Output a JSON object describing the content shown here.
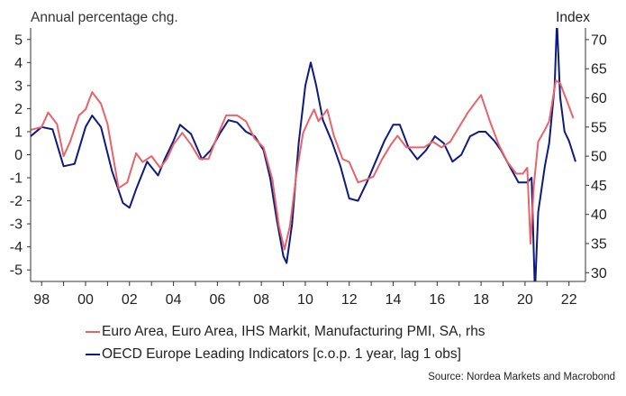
{
  "chart_data": {
    "type": "line",
    "left_axis_title": "Annual percentage chg.",
    "right_axis_title": "Index",
    "x_ticks": [
      "98",
      "00",
      "02",
      "04",
      "06",
      "08",
      "10",
      "12",
      "14",
      "16",
      "18",
      "20",
      "22"
    ],
    "x_range": [
      1997.5,
      2022.75
    ],
    "ylim_left": [
      -5.5,
      5.5
    ],
    "yticks_left": [
      "5",
      "4",
      "3",
      "2",
      "1",
      "0",
      "-1",
      "-2",
      "-3",
      "-4",
      "-5"
    ],
    "ylim_right": [
      28.5,
      72
    ],
    "yticks_right": [
      "70",
      "65",
      "60",
      "55",
      "50",
      "45",
      "40",
      "35",
      "30"
    ],
    "grid": false,
    "legend_position": "bottom",
    "series": [
      {
        "name": "Euro Area, Euro Area, IHS Markit, Manufacturing PMI, SA, rhs",
        "axis": "right",
        "color": "#e8636a",
        "x": [
          1997.5,
          1998.0,
          1998.3,
          1998.7,
          1999.0,
          1999.3,
          1999.7,
          2000.0,
          2000.3,
          2000.7,
          2001.0,
          2001.5,
          2001.9,
          2002.3,
          2002.6,
          2003.0,
          2003.4,
          2003.7,
          2004.0,
          2004.4,
          2004.8,
          2005.2,
          2005.6,
          2006.0,
          2006.4,
          2006.9,
          2007.3,
          2007.7,
          2008.1,
          2008.5,
          2008.8,
          2009.05,
          2009.3,
          2009.6,
          2009.9,
          2010.2,
          2010.4,
          2010.6,
          2010.8,
          2011.0,
          2011.3,
          2011.7,
          2012.0,
          2012.4,
          2012.8,
          2013.1,
          2013.5,
          2013.9,
          2014.2,
          2014.6,
          2015.0,
          2015.4,
          2015.8,
          2016.2,
          2016.6,
          2017.0,
          2017.4,
          2017.8,
          2018.0,
          2018.4,
          2018.8,
          2019.2,
          2019.6,
          2019.9,
          2020.1,
          2020.25,
          2020.4,
          2020.6,
          2020.9,
          2021.1,
          2021.4,
          2021.6,
          2021.9,
          2022.2
        ],
        "values": [
          54.5,
          55.0,
          57.5,
          55.5,
          50.0,
          52.5,
          57.0,
          58.0,
          61.0,
          59.0,
          55.5,
          44.5,
          45.5,
          50.5,
          49.0,
          50.0,
          48.0,
          49.5,
          52.0,
          54.0,
          52.0,
          49.5,
          49.5,
          53.5,
          57.0,
          57.0,
          56.0,
          53.0,
          51.5,
          46.0,
          38.0,
          34.0,
          38.0,
          47.0,
          54.0,
          56.5,
          58.0,
          56.0,
          57.0,
          58.0,
          53.5,
          49.5,
          49.0,
          45.5,
          46.0,
          46.5,
          49.5,
          52.0,
          53.5,
          51.5,
          51.5,
          51.5,
          52.5,
          51.5,
          52.5,
          55.0,
          57.5,
          59.5,
          60.5,
          56.0,
          52.0,
          49.0,
          47.0,
          47.0,
          48.0,
          35.0,
          45.0,
          52.5,
          54.5,
          56.0,
          63.0,
          62.5,
          59.5,
          56.5
        ]
      },
      {
        "name": "OECD Europe Leading Indicators [c.o.p. 1 year, lag 1 obs]",
        "axis": "left",
        "color": "#0d1b7e",
        "x": [
          1997.5,
          1998.0,
          1998.5,
          1999.0,
          1999.5,
          2000.0,
          2000.3,
          2000.7,
          2001.2,
          2001.7,
          2002.0,
          2002.3,
          2002.8,
          2003.3,
          2003.6,
          2004.0,
          2004.3,
          2004.8,
          2005.3,
          2005.7,
          2006.1,
          2006.5,
          2006.9,
          2007.3,
          2007.7,
          2008.1,
          2008.4,
          2008.7,
          2009.0,
          2009.15,
          2009.4,
          2009.7,
          2010.0,
          2010.25,
          2010.5,
          2010.8,
          2011.2,
          2011.6,
          2012.0,
          2012.4,
          2012.8,
          2013.2,
          2013.6,
          2014.0,
          2014.3,
          2014.7,
          2015.1,
          2015.5,
          2015.9,
          2016.3,
          2016.7,
          2017.1,
          2017.5,
          2017.9,
          2018.2,
          2018.6,
          2018.9,
          2019.3,
          2019.7,
          2020.1,
          2020.3,
          2020.45,
          2020.6,
          2020.9,
          2021.1,
          2021.35,
          2021.45,
          2021.6,
          2021.8,
          2022.0,
          2022.3
        ],
        "values": [
          0.8,
          1.2,
          1.1,
          -0.5,
          -0.4,
          1.2,
          1.7,
          1.2,
          -0.7,
          -2.1,
          -2.3,
          -1.5,
          -0.3,
          -0.9,
          -0.2,
          0.6,
          1.3,
          0.9,
          -0.2,
          0.2,
          0.9,
          1.5,
          1.4,
          1.0,
          0.8,
          0.2,
          -1.0,
          -2.8,
          -4.4,
          -4.7,
          -3.0,
          0.5,
          3.0,
          4.0,
          3.0,
          1.5,
          0.6,
          -0.5,
          -1.9,
          -2.0,
          -1.2,
          -0.3,
          0.6,
          1.3,
          1.3,
          0.3,
          -0.2,
          0.2,
          0.8,
          0.5,
          -0.3,
          0.0,
          0.8,
          1.0,
          1.0,
          0.6,
          0.2,
          -0.5,
          -1.2,
          -1.2,
          -1.0,
          -6.0,
          -2.5,
          -0.5,
          0.5,
          3.0,
          5.8,
          2.5,
          1.0,
          0.6,
          -0.3
        ]
      }
    ],
    "source": "Source: Nordea Markets and Macrobond"
  }
}
